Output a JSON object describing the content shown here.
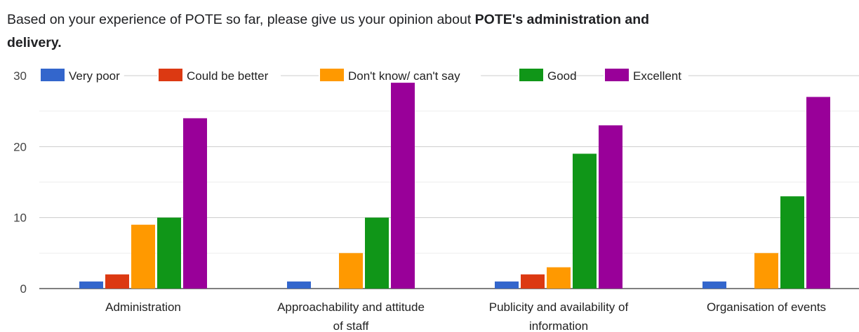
{
  "title": {
    "prefix": "Based on your experience of POTE so far, please give us your opinion about ",
    "bold": "POTE's administration and delivery."
  },
  "chart_data": {
    "type": "bar",
    "categories": [
      [
        "Administration"
      ],
      [
        "Approachability and attitude",
        "of staff"
      ],
      [
        "Publicity and availability of",
        "information"
      ],
      [
        "Organisation of events"
      ]
    ],
    "series": [
      {
        "name": "Very poor",
        "color": "#3366cc",
        "values": [
          1,
          1,
          1,
          1
        ]
      },
      {
        "name": "Could be better",
        "color": "#dc3912",
        "values": [
          2,
          0,
          2,
          0
        ]
      },
      {
        "name": "Don't know/ can't say",
        "color": "#ff9900",
        "values": [
          9,
          5,
          3,
          5
        ]
      },
      {
        "name": "Good",
        "color": "#109618",
        "values": [
          10,
          10,
          19,
          13
        ]
      },
      {
        "name": "Excellent",
        "color": "#990099",
        "values": [
          24,
          29,
          23,
          27
        ]
      }
    ],
    "yticks": [
      0,
      10,
      20,
      30
    ],
    "ylim": [
      0,
      30
    ],
    "grid": true,
    "legend_position": "top"
  }
}
